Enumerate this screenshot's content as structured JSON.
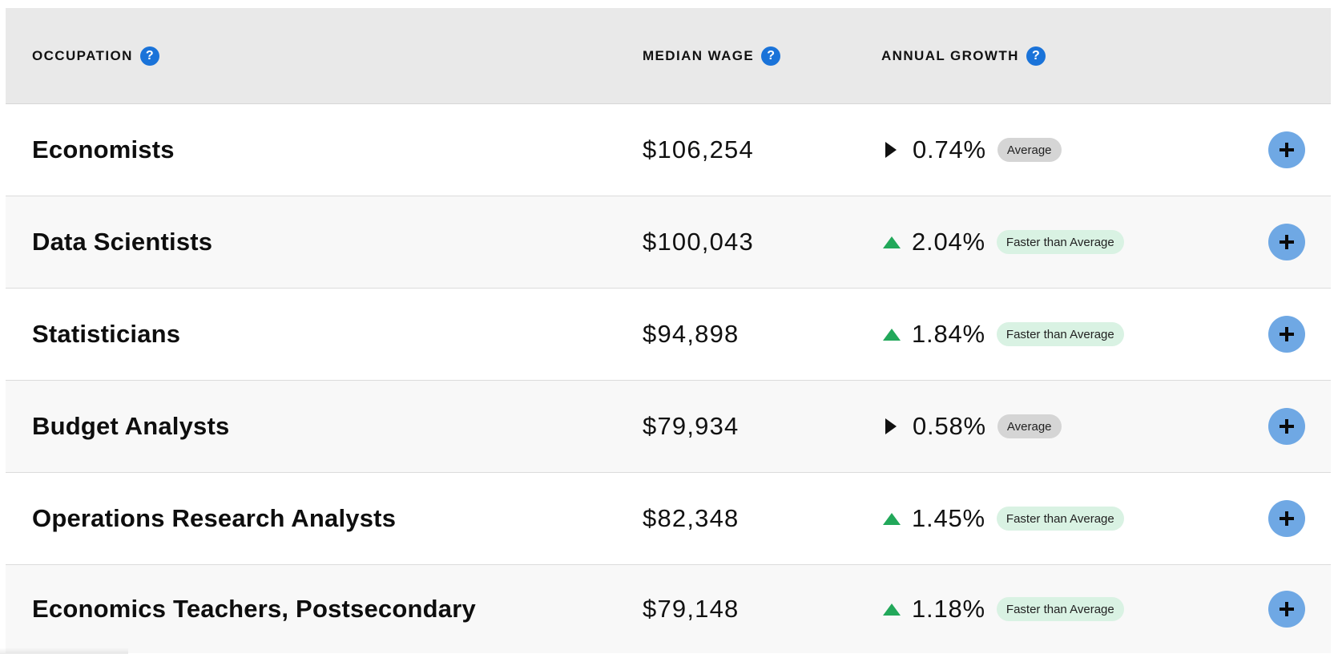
{
  "header": {
    "occupation_label": "OCCUPATION",
    "median_wage_label": "MEDIAN WAGE",
    "annual_growth_label": "ANNUAL GROWTH",
    "help_glyph": "?"
  },
  "rows": [
    {
      "occupation": "Economists",
      "median_wage": "$106,254",
      "growth": "0.74%",
      "trend": "flat",
      "badge": "Average"
    },
    {
      "occupation": "Data Scientists",
      "median_wage": "$100,043",
      "growth": "2.04%",
      "trend": "up",
      "badge": "Faster than Average"
    },
    {
      "occupation": "Statisticians",
      "median_wage": "$94,898",
      "growth": "1.84%",
      "trend": "up",
      "badge": "Faster than Average"
    },
    {
      "occupation": "Budget Analysts",
      "median_wage": "$79,934",
      "growth": "0.58%",
      "trend": "flat",
      "badge": "Average"
    },
    {
      "occupation": "Operations Research Analysts",
      "median_wage": "$82,348",
      "growth": "1.45%",
      "trend": "up",
      "badge": "Faster than Average"
    },
    {
      "occupation": "Economics Teachers, Postsecondary",
      "median_wage": "$79,148",
      "growth": "1.18%",
      "trend": "up",
      "badge": "Faster than Average"
    }
  ],
  "colors": {
    "header_bg": "#e9e9e9",
    "help_icon": "#1a73d9",
    "expand_button": "#6fa8e4",
    "up_arrow": "#22a85a",
    "badge_average": "#d5d5d5",
    "badge_faster": "#d9f2e3"
  },
  "icons": {
    "help": "help-icon",
    "flat": "triangle-right-icon",
    "up": "triangle-up-icon",
    "expand": "plus-icon"
  }
}
